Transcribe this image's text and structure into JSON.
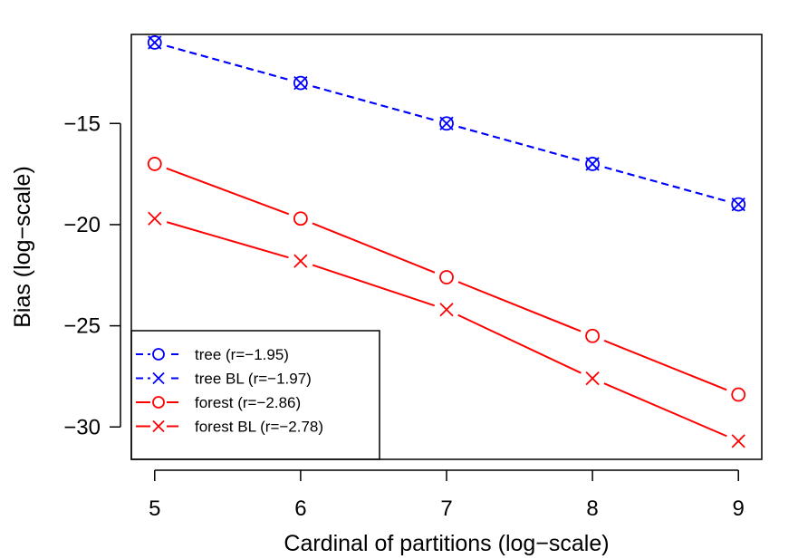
{
  "chart_data": {
    "type": "line",
    "title": "",
    "xlabel": "Cardinal of partitions (log−scale)",
    "ylabel": "Bias (log−scale)",
    "x_scale": "log",
    "y_scale": "log",
    "x": [
      5,
      6,
      7,
      8,
      9
    ],
    "x_tick_labels": [
      "5",
      "6",
      "7",
      "8",
      "9"
    ],
    "y_ticks": [
      -15,
      -20,
      -25,
      -30
    ],
    "y_tick_labels": [
      "−15",
      "−20",
      "−25",
      "−30"
    ],
    "xlim": [
      4.84,
      9.16
    ],
    "ylim": [
      -31.6,
      -10.6
    ],
    "grid": false,
    "legend_position": "bottom-left",
    "series": [
      {
        "name": "tree (r=−1.95)",
        "color": "#0000ff",
        "line": "dashed",
        "marker": "circle",
        "values": [
          -11.0,
          -13.0,
          -15.0,
          -17.0,
          -19.0
        ]
      },
      {
        "name": "tree BL (r=−1.97)",
        "color": "#0000ff",
        "line": "dashed",
        "marker": "cross",
        "values": [
          -11.0,
          -13.0,
          -15.0,
          -17.0,
          -19.0
        ]
      },
      {
        "name": "forest (r=−2.86)",
        "color": "#ff0000",
        "line": "solid",
        "marker": "circle",
        "values": [
          -17.0,
          -19.7,
          -22.6,
          -25.5,
          -28.4
        ]
      },
      {
        "name": "forest BL (r=−2.78)",
        "color": "#ff0000",
        "line": "solid",
        "marker": "cross",
        "values": [
          -19.7,
          -21.8,
          -24.2,
          -27.6,
          -30.7
        ]
      }
    ]
  }
}
